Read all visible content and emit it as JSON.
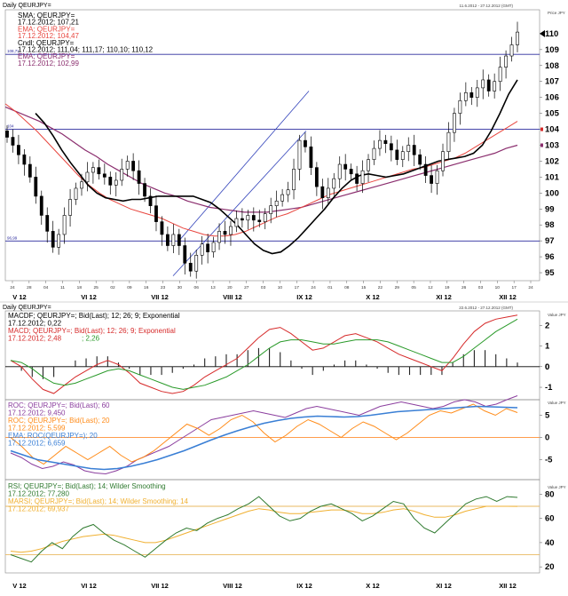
{
  "colors": {
    "sma": "#000000",
    "ema": "#e8463f",
    "ema_long": "#8b2e6e",
    "hline": "#2c2c9e",
    "candle": "#000000",
    "channel": "#3344bb",
    "macd": "#d62a2a",
    "macd_signal": "#2a9a2a",
    "roc": "#8b3e9e",
    "roc20": "#ff8c1a",
    "ema_roc": "#3a7fd5",
    "rsi": "#2f7a2f",
    "marsi": "#f0b030",
    "rsi_level": "#e8b860"
  },
  "header": {
    "p1_title": "Daily QEURJPY=",
    "p1_range": "11.6.2012 - 27.12.2012 (GMT)",
    "p2_title": "Daily QEURJPY=",
    "p2_range": "22.6.2012 - 27.12.2012 (GMT)",
    "scale_label": "Price\nJPY",
    "value_label": "Value\nJPY"
  },
  "legends": {
    "p1": [
      {
        "text": "SMA; QEURJPY=",
        "color": "#000000"
      },
      {
        "text": "17.12.2012; 107,21",
        "color": "#000000"
      },
      {
        "text": "EMA; QEURJPY=",
        "color": "#e8463f"
      },
      {
        "text": "17.12.2012; 104,47",
        "color": "#e8463f"
      },
      {
        "text": "Cndl; QEURJPY=",
        "color": "#000000"
      },
      {
        "text": "17.12.2012; 111,04; 111,17; 110,10; 110,12",
        "color": "#000000"
      },
      {
        "text": "EMA; QEURJPY=",
        "color": "#8b2e6e"
      },
      {
        "text": "17.12.2012; 102,99",
        "color": "#8b2e6e"
      }
    ],
    "p2": [
      {
        "text": "MACDF; QEURJPY=; Bid(Last); 12; 26; 9; Exponential",
        "color": "#000000"
      },
      {
        "text": "17.12.2012; 0,22",
        "color": "#000000"
      },
      {
        "text": "MACD; QEURJPY=; Bid(Last); 12; 26; 9; Exponential",
        "color": "#d62a2a"
      },
      {
        "text": "17.12.2012; 2,48",
        "color": "#d62a2a"
      },
      {
        "text": "; 2,26",
        "color": "#2a9a2a"
      }
    ],
    "p3": [
      {
        "text": "ROC; QEURJPY=; Bid(Last); 60",
        "color": "#8b3e9e"
      },
      {
        "text": "17.12.2012; 9,450",
        "color": "#8b3e9e"
      },
      {
        "text": "ROC; QEURJPY=; Bid(Last); 20",
        "color": "#ff8c1a"
      },
      {
        "text": "17.12.2012; 5,599",
        "color": "#ff8c1a"
      },
      {
        "text": "EMA; ROC(QEURJPY=); 20",
        "color": "#3a7fd5"
      },
      {
        "text": "17.12.2012; 6,659",
        "color": "#3a7fd5"
      }
    ],
    "p4": [
      {
        "text": "RSI; QEURJPY=; Bid(Last); 14; Wilder Smoothing",
        "color": "#2f7a2f"
      },
      {
        "text": "17.12.2012; 77,280",
        "color": "#2f7a2f"
      },
      {
        "text": "MARSI; QEURJPY=; Bid(Last); 14; Wilder Smoothing; 14",
        "color": "#f0b030"
      },
      {
        "text": "17.12.2012; 69,937",
        "color": "#f0b030"
      }
    ]
  },
  "chart_data": [
    {
      "type": "candlestick",
      "title": "Daily QEURJPY=",
      "ylim": [
        94.5,
        111.5
      ],
      "y_ticks": [
        "95",
        "96",
        "97",
        "98",
        "99",
        "100",
        "101",
        "102",
        "103",
        "104",
        "105",
        "106",
        "107",
        "108",
        "109",
        "110"
      ],
      "hlines": [
        {
          "value": 108.7,
          "label": "108,71"
        },
        {
          "value": 104.0,
          "label": "104"
        },
        {
          "value": 96.99,
          "label": "96,99"
        }
      ],
      "last_price": "110",
      "price_path": [
        103.5,
        103.0,
        102.4,
        101.8,
        101.0,
        99.8,
        98.6,
        97.6,
        96.6,
        97.4,
        98.6,
        99.6,
        100.3,
        100.7,
        101.3,
        101.6,
        101.2,
        101.0,
        100.5,
        100.8,
        101.5,
        102.0,
        101.4,
        100.6,
        99.8,
        99.2,
        98.2,
        97.4,
        96.7,
        97.4,
        96.7,
        95.6,
        95.1,
        96.1,
        96.8,
        96.3,
        96.9,
        97.6,
        97.4,
        97.9,
        98.4,
        98.3,
        98.6,
        98.3,
        98.2,
        98.7,
        99.2,
        99.5,
        99.9,
        100.2,
        101.5,
        103.3,
        102.9,
        101.6,
        100.4,
        99.7,
        100.3,
        100.9,
        101.8,
        101.5,
        101.2,
        100.6,
        101.4,
        102.1,
        102.8,
        103.3,
        103.1,
        102.7,
        102.1,
        102.6,
        103.0,
        102.4,
        101.8,
        101.1,
        100.6,
        101.4,
        102.6,
        103.8,
        105.0,
        105.8,
        106.3,
        106.0,
        106.6,
        107.1,
        106.4,
        107.0,
        107.9,
        108.6,
        109.3,
        110.1
      ],
      "sma": [
        105.0,
        104.4,
        103.6,
        102.7,
        101.9,
        101.2,
        100.5,
        100.0,
        99.7,
        99.6,
        99.5,
        99.6,
        99.6,
        99.7,
        99.8,
        99.8,
        99.8,
        99.8,
        99.8,
        99.6,
        99.4,
        99.0,
        98.5,
        98.0,
        97.4,
        96.8,
        96.4,
        96.2,
        96.3,
        96.7,
        97.2,
        97.8,
        98.4,
        99.0,
        99.7,
        100.3,
        100.8,
        101.1,
        101.2,
        101.1,
        101.0,
        101.1,
        101.2,
        101.4,
        101.6,
        101.8,
        102.0,
        102.1,
        102.2,
        102.3,
        102.5,
        103.0,
        103.9,
        105.0,
        106.2,
        107.1
      ],
      "ema_short": [
        105.6,
        105.1,
        104.5,
        103.9,
        103.2,
        102.5,
        101.8,
        101.1,
        100.5,
        100.0,
        99.6,
        99.3,
        99.0,
        98.8,
        98.6,
        98.4,
        98.1,
        97.8,
        97.6,
        97.4,
        97.3,
        97.3,
        97.4,
        97.6,
        97.9,
        98.2,
        98.5,
        98.7,
        99.0,
        99.3,
        99.6,
        99.9,
        100.1,
        100.3,
        100.5,
        100.7,
        100.9,
        101.1,
        101.3,
        101.5,
        101.6,
        101.8,
        102.0,
        102.2,
        102.5,
        102.9,
        103.3,
        103.7,
        104.1,
        104.5
      ],
      "ema_long": [
        105.4,
        105.1,
        104.8,
        104.5,
        104.1,
        103.7,
        103.2,
        102.7,
        102.3,
        101.8,
        101.4,
        101.0,
        100.6,
        100.3,
        100.0,
        99.8,
        99.5,
        99.3,
        99.1,
        99.0,
        98.9,
        98.8,
        98.8,
        98.8,
        98.9,
        99.0,
        99.1,
        99.3,
        99.5,
        99.7,
        99.9,
        100.1,
        100.3,
        100.5,
        100.7,
        100.9,
        101.1,
        101.3,
        101.5,
        101.7,
        101.9,
        102.1,
        102.3,
        102.5,
        102.8,
        103.0
      ],
      "x_ticks": [
        "24",
        "28",
        "04",
        "11",
        "18",
        "25",
        "02",
        "09",
        "16",
        "23",
        "30",
        "06",
        "13",
        "20",
        "27",
        "03",
        "10",
        "17",
        "24",
        "01",
        "08",
        "15",
        "22",
        "29",
        "05",
        "12",
        "19",
        "26",
        "03",
        "10",
        "17",
        "24"
      ],
      "month_labels": [
        "V 12",
        "VI 12",
        "VII 12",
        "VIII 12",
        "IX 12",
        "X 12",
        "XI 12",
        "XII 12"
      ]
    },
    {
      "type": "line",
      "title": "MACD",
      "ylim": [
        -1.6,
        2.7
      ],
      "y_ticks": [
        "2",
        "1",
        "0",
        "-1"
      ],
      "macd": [
        0.3,
        0.0,
        -0.6,
        -1.1,
        -1.3,
        -0.9,
        -0.5,
        -0.2,
        0.1,
        0.3,
        0.1,
        -0.3,
        -0.8,
        -1.0,
        -1.2,
        -1.3,
        -1.2,
        -0.9,
        -0.5,
        -0.2,
        0.1,
        0.4,
        0.9,
        1.4,
        1.8,
        1.9,
        1.6,
        1.2,
        0.8,
        0.9,
        1.2,
        1.5,
        1.6,
        1.4,
        1.2,
        0.9,
        0.6,
        0.4,
        0.2,
        0.0,
        -0.2,
        0.4,
        1.1,
        1.7,
        2.1,
        2.3,
        2.4,
        2.5
      ],
      "signal": [
        0.3,
        0.2,
        -0.1,
        -0.5,
        -0.8,
        -0.9,
        -0.8,
        -0.6,
        -0.4,
        -0.2,
        -0.1,
        -0.2,
        -0.4,
        -0.6,
        -0.8,
        -1.0,
        -1.1,
        -1.0,
        -0.9,
        -0.7,
        -0.5,
        -0.2,
        0.1,
        0.5,
        0.9,
        1.2,
        1.3,
        1.3,
        1.2,
        1.1,
        1.1,
        1.2,
        1.3,
        1.3,
        1.3,
        1.2,
        1.0,
        0.8,
        0.6,
        0.4,
        0.2,
        0.2,
        0.5,
        0.9,
        1.3,
        1.7,
        2.0,
        2.3
      ],
      "last_value": "0"
    },
    {
      "type": "line",
      "title": "ROC",
      "ylim": [
        -9.5,
        8.5
      ],
      "y_ticks": [
        "5",
        "0",
        "-5"
      ],
      "roc60": [
        -3.5,
        -4.5,
        -6.0,
        -7.0,
        -6.5,
        -5.5,
        -6.2,
        -7.5,
        -8.0,
        -8.2,
        -7.5,
        -6.5,
        -5.0,
        -4.0,
        -3.0,
        -2.0,
        -0.5,
        1.0,
        2.5,
        4.0,
        4.5,
        5.0,
        5.5,
        6.0,
        5.5,
        5.0,
        4.5,
        5.5,
        6.5,
        7.0,
        6.5,
        6.0,
        5.5,
        5.0,
        6.0,
        7.0,
        7.5,
        8.0,
        7.5,
        7.0,
        6.5,
        7.0,
        8.0,
        8.5,
        8.0,
        7.0,
        7.5,
        8.5,
        9.4
      ],
      "roc20": [
        0.0,
        -2.0,
        -4.5,
        -6.0,
        -4.0,
        -2.0,
        -3.5,
        -5.0,
        -3.5,
        -2.0,
        -4.0,
        -5.5,
        -4.5,
        -3.0,
        -1.0,
        1.0,
        3.0,
        2.0,
        0.5,
        2.0,
        4.0,
        5.0,
        3.5,
        1.0,
        -1.0,
        0.5,
        2.5,
        4.0,
        3.0,
        1.5,
        0.0,
        2.0,
        3.5,
        2.5,
        1.0,
        -0.5,
        1.0,
        3.0,
        5.0,
        6.0,
        5.5,
        6.5,
        7.5,
        6.0,
        5.0,
        6.5,
        5.6
      ],
      "ema_roc": [
        -3.0,
        -4.0,
        -5.0,
        -5.5,
        -6.0,
        -6.5,
        -7.0,
        -7.2,
        -7.0,
        -6.5,
        -5.8,
        -5.0,
        -4.0,
        -3.0,
        -1.8,
        -0.6,
        0.5,
        1.5,
        2.4,
        3.2,
        3.8,
        4.3,
        4.6,
        4.8,
        4.7,
        4.6,
        4.7,
        5.0,
        5.4,
        5.8,
        6.0,
        6.2,
        6.4,
        6.6,
        6.8,
        7.0,
        6.9,
        6.8,
        6.7
      ],
      "zero_line": 0
    },
    {
      "type": "line",
      "title": "RSI",
      "ylim": [
        15,
        92
      ],
      "y_ticks": [
        "80",
        "60",
        "40",
        "20"
      ],
      "levels": [
        70,
        30
      ],
      "rsi": [
        30,
        27,
        24,
        33,
        40,
        35,
        45,
        52,
        55,
        48,
        42,
        38,
        33,
        28,
        35,
        42,
        48,
        52,
        50,
        56,
        60,
        63,
        68,
        72,
        78,
        70,
        62,
        58,
        60,
        66,
        70,
        72,
        68,
        64,
        58,
        62,
        68,
        74,
        72,
        60,
        52,
        48,
        56,
        64,
        72,
        76,
        78,
        74,
        78,
        77.3
      ],
      "marsi": [
        33,
        32,
        33,
        35,
        38,
        41,
        43,
        45,
        46,
        47,
        46,
        44,
        42,
        40,
        40,
        42,
        45,
        48,
        51,
        54,
        57,
        60,
        63,
        66,
        68,
        67,
        65,
        64,
        64,
        65,
        66,
        67,
        67,
        66,
        64,
        64,
        65,
        67,
        68,
        66,
        63,
        61,
        61,
        63,
        66,
        68,
        70,
        70,
        70,
        69.9
      ]
    }
  ]
}
